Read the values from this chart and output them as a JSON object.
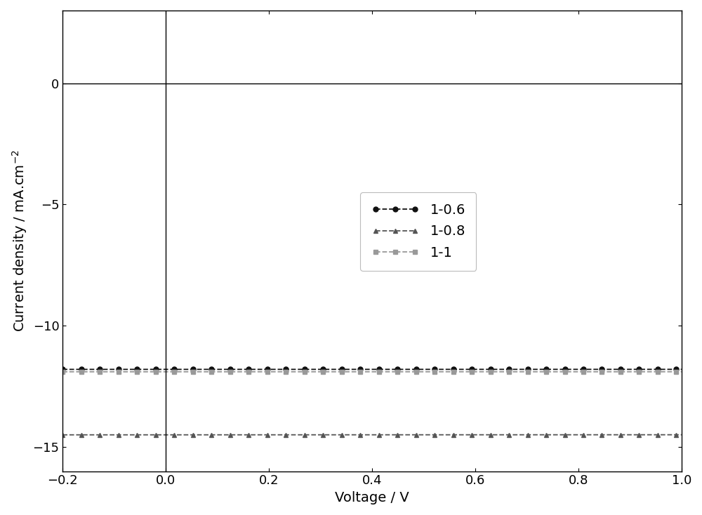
{
  "title": "",
  "xlabel": "Voltage / V",
  "ylabel": "Current density / mA.cm$^{-2}$",
  "xlim": [
    -0.2,
    1.0
  ],
  "ylim": [
    -16,
    3
  ],
  "xticks": [
    -0.2,
    0.0,
    0.2,
    0.4,
    0.6,
    0.8,
    1.0
  ],
  "yticks": [
    -15,
    -10,
    -5,
    0
  ],
  "background_color": "#ffffff",
  "series": [
    {
      "label": "1-0.6",
      "color": "#111111",
      "linestyle": "--",
      "marker": "o",
      "markersize": 5,
      "Jsc": -11.8,
      "J0": 1.2e-11,
      "n": 2.1
    },
    {
      "label": "1-0.8",
      "color": "#555555",
      "linestyle": "--",
      "marker": "^",
      "markersize": 5,
      "Jsc": -14.5,
      "J0": 8e-11,
      "n": 2.2
    },
    {
      "label": "1-1",
      "color": "#999999",
      "linestyle": "--",
      "marker": "s",
      "markersize": 5,
      "Jsc": -11.9,
      "J0": 3e-12,
      "n": 1.95
    }
  ],
  "axline_color": "#000000",
  "font_size": 14
}
